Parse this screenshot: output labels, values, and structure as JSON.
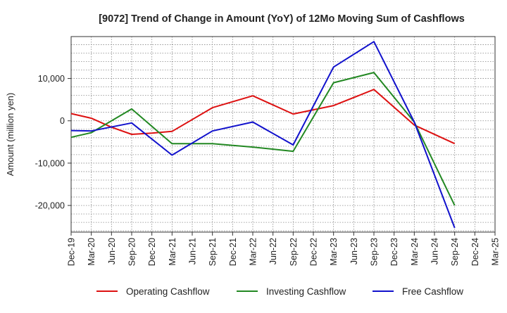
{
  "chart_data": {
    "type": "line",
    "title": "[9072]  Trend of Change in Amount (YoY) of 12Mo Moving Sum of Cashflows",
    "xlabel": "",
    "ylabel": "Amount (million yen)",
    "categories": [
      "Dec-19",
      "Mar-20",
      "Jun-20",
      "Sep-20",
      "Dec-20",
      "Mar-21",
      "Jun-21",
      "Sep-21",
      "Dec-21",
      "Mar-22",
      "Jun-22",
      "Sep-22",
      "Dec-22",
      "Mar-23",
      "Jun-23",
      "Sep-23",
      "Dec-23",
      "Mar-24",
      "Jun-24",
      "Sep-24",
      "Dec-24",
      "Mar-25"
    ],
    "ylim": [
      -26300,
      19900
    ],
    "yticks": [
      {
        "value": 10000,
        "label": "10,000"
      },
      {
        "value": 0,
        "label": "0"
      },
      {
        "value": -10000,
        "label": "-10,000"
      },
      {
        "value": -20000,
        "label": "-20,000"
      }
    ],
    "grid": true,
    "legend_position": "bottom",
    "series": [
      {
        "name": "Operating Cashflow",
        "color": "#dd1111",
        "values": [
          1700,
          600,
          -1500,
          -3200,
          -2900,
          -2500,
          null,
          3100,
          null,
          5900,
          null,
          1600,
          null,
          3600,
          null,
          7400,
          null,
          -1000,
          null,
          -5400,
          null,
          null
        ]
      },
      {
        "name": "Investing Cashflow",
        "color": "#228822",
        "values": [
          -3900,
          -2800,
          null,
          2800,
          null,
          -5400,
          null,
          -5400,
          null,
          -6200,
          null,
          -7200,
          null,
          9000,
          null,
          11400,
          null,
          -300,
          null,
          -20000,
          null,
          null
        ]
      },
      {
        "name": "Free Cashflow",
        "color": "#1111cc",
        "values": [
          -2300,
          -2400,
          null,
          -500,
          null,
          -8100,
          null,
          -2400,
          null,
          -300,
          null,
          -5700,
          null,
          12700,
          null,
          18700,
          null,
          -300,
          null,
          -25300,
          null,
          null
        ]
      }
    ]
  }
}
